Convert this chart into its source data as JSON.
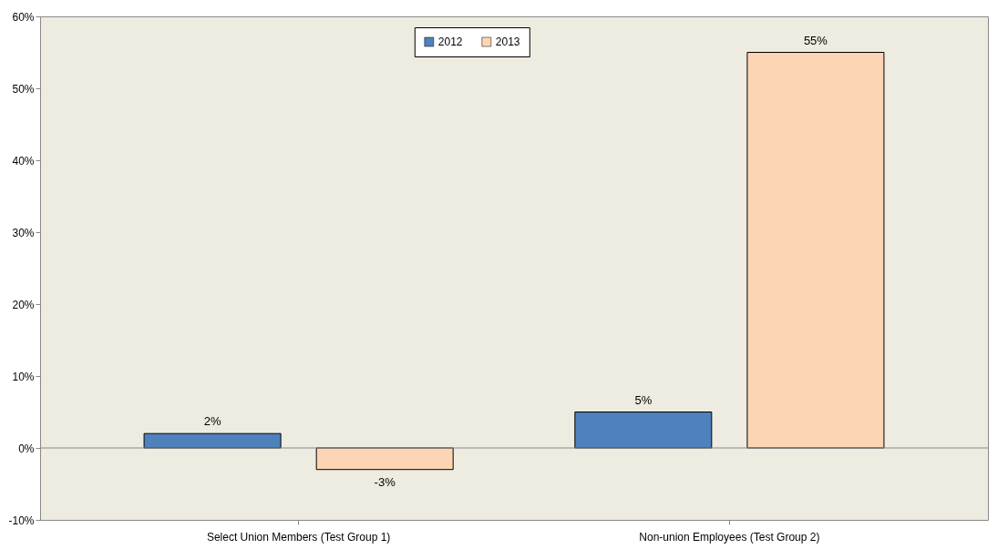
{
  "chart_data": {
    "type": "bar",
    "categories": [
      "Select Union Members (Test Group 1)",
      "Non-union Employees (Test Group 2)"
    ],
    "series": [
      {
        "name": "2012",
        "color": "#4f81bd",
        "values": [
          2,
          5
        ],
        "value_labels": [
          "2%",
          "5%"
        ]
      },
      {
        "name": "2013",
        "color": "#fcd5b5",
        "values": [
          -3,
          55
        ],
        "value_labels": [
          "-3%",
          "55%"
        ]
      }
    ],
    "ylim": [
      -10,
      60
    ],
    "yticks": [
      {
        "value": -10,
        "label": "-10%"
      },
      {
        "value": 0,
        "label": "0%"
      },
      {
        "value": 10,
        "label": "10%"
      },
      {
        "value": 20,
        "label": "20%"
      },
      {
        "value": 30,
        "label": "30%"
      },
      {
        "value": 40,
        "label": "40%"
      },
      {
        "value": 50,
        "label": "50%"
      },
      {
        "value": 60,
        "label": "60%"
      }
    ],
    "legend": "top"
  }
}
